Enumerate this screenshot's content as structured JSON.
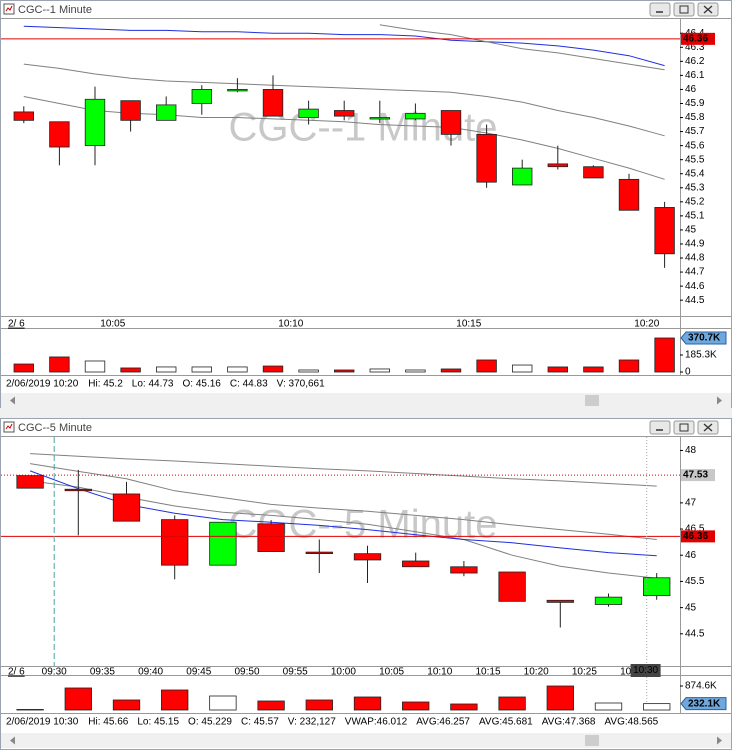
{
  "windows": [
    {
      "title": "CGC--1 Minute",
      "status": [
        "2/06/2019 10:20",
        "Hi: 45.2",
        "Lo: 44.73",
        "O: 45.16",
        "C: 44.83",
        "V: 370,661"
      ]
    },
    {
      "title": "CGC--5 Minute",
      "status": [
        "2/06/2019 10:30",
        "Hi: 45.66",
        "Lo: 45.15",
        "O: 45.229",
        "C: 45.57",
        "V: 232,127",
        "VWAP:46.012",
        "AVG:46.257",
        "AVG:45.681",
        "AVG:47.368",
        "AVG:48.565"
      ]
    }
  ],
  "chart_data": [
    {
      "type": "candlestick",
      "date_label": "2/ 6",
      "categories": [
        null,
        null,
        null,
        "10:05",
        null,
        null,
        null,
        null,
        "10:10",
        null,
        null,
        null,
        null,
        "10:15",
        null,
        null,
        null,
        null,
        "10:20"
      ],
      "open": [
        45.84,
        45.77,
        45.6,
        45.92,
        45.78,
        45.9,
        45.99,
        46.0,
        45.8,
        45.85,
        45.79,
        45.79,
        45.85,
        45.68,
        45.32,
        45.47,
        45.45,
        45.36,
        45.16
      ],
      "high": [
        45.88,
        45.77,
        46.02,
        45.92,
        45.95,
        46.03,
        46.08,
        46.1,
        45.92,
        45.92,
        45.92,
        45.9,
        45.85,
        45.75,
        45.5,
        45.6,
        45.46,
        45.4,
        45.2
      ],
      "low": [
        45.76,
        45.46,
        45.46,
        45.7,
        45.78,
        45.82,
        45.98,
        45.81,
        45.75,
        45.78,
        45.76,
        45.78,
        45.6,
        45.3,
        45.32,
        45.43,
        45.37,
        45.14,
        44.73
      ],
      "close": [
        45.78,
        45.59,
        45.93,
        45.78,
        45.89,
        46.0,
        46.0,
        45.81,
        45.86,
        45.81,
        45.8,
        45.83,
        45.68,
        45.34,
        45.44,
        45.45,
        45.37,
        45.14,
        44.83
      ],
      "up_color": "#00ff00",
      "down_color": "#ff0000",
      "overlays": [
        {
          "color": "#1f2fe0",
          "values": [
            46.45,
            46.44,
            46.43,
            46.42,
            46.42,
            46.41,
            46.41,
            46.4,
            46.4,
            46.39,
            46.39,
            46.38,
            46.35,
            46.34,
            46.33,
            46.31,
            46.28,
            46.24,
            46.17
          ]
        },
        {
          "color": "#808080",
          "values": [
            46.18,
            46.15,
            46.11,
            46.08,
            46.06,
            46.05,
            46.04,
            46.03,
            46.02,
            46.01,
            46.0,
            45.99,
            45.98,
            45.95,
            45.91,
            45.85,
            45.8,
            45.74,
            45.67
          ]
        },
        {
          "color": "#808080",
          "values": [
            45.95,
            45.9,
            45.85,
            45.83,
            45.82,
            45.8,
            45.8,
            45.79,
            45.78,
            45.77,
            45.75,
            45.74,
            45.73,
            45.69,
            45.64,
            45.58,
            45.51,
            45.44,
            45.36
          ]
        },
        {
          "color": "#808080",
          "values": [
            null,
            null,
            null,
            null,
            null,
            null,
            null,
            null,
            null,
            null,
            46.46,
            46.42,
            46.39,
            46.34,
            46.29,
            46.26,
            46.22,
            46.18,
            46.14
          ]
        }
      ],
      "ref_lines": [
        {
          "value": 46.36,
          "color": "#e00000",
          "style": "solid",
          "flag_color": "#e00000"
        }
      ],
      "ylim": [
        44.43,
        46.48
      ],
      "yticks": [
        46.4,
        46.3,
        46.2,
        46.1,
        46,
        45.9,
        45.8,
        45.7,
        45.6,
        45.5,
        45.4,
        45.3,
        45.2,
        45.1,
        45,
        44.9,
        44.8,
        44.7,
        44.6,
        44.5
      ],
      "volume": {
        "values": [
          87000,
          164000,
          120000,
          44000,
          55000,
          55000,
          55000,
          65000,
          22000,
          22000,
          33000,
          22000,
          33000,
          131000,
          76000,
          55000,
          55000,
          131000,
          370661
        ],
        "ylim": [
          0,
          425000
        ],
        "yticks": [
          {
            "value": 185330,
            "label": "185.3K"
          },
          0
        ],
        "flag": {
          "value": 370661,
          "label": "370.7K"
        },
        "flag_color": "#6fa8dc"
      }
    },
    {
      "type": "candlestick",
      "date_label": "2/ 6",
      "categories": [
        null,
        "09:30",
        "09:35",
        "09:40",
        "09:45",
        "09:50",
        "09:55",
        "10:00",
        "10:05",
        "10:10",
        "10:15",
        "10:20",
        "10:25",
        "10:30"
      ],
      "open": [
        47.52,
        47.26,
        47.17,
        46.68,
        45.81,
        46.6,
        46.06,
        46.03,
        45.89,
        45.78,
        45.68,
        45.14,
        45.06,
        45.229
      ],
      "high": [
        47.52,
        47.63,
        47.4,
        46.76,
        46.63,
        46.67,
        46.3,
        46.18,
        46.05,
        45.89,
        45.68,
        45.14,
        45.27,
        45.66
      ],
      "low": [
        47.28,
        46.38,
        46.65,
        45.54,
        45.81,
        46.07,
        45.66,
        45.47,
        45.78,
        45.6,
        45.12,
        44.62,
        45.02,
        45.15
      ],
      "close": [
        47.28,
        47.24,
        46.65,
        45.81,
        46.63,
        46.07,
        46.04,
        45.91,
        45.78,
        45.66,
        45.12,
        45.1,
        45.2,
        45.57
      ],
      "up_color": "#00ff00",
      "down_color": "#ff0000",
      "overlays": [
        {
          "color": "#808080",
          "values": [
            47.94,
            47.89,
            47.84,
            47.8,
            47.75,
            47.7,
            47.65,
            47.61,
            47.56,
            47.51,
            47.46,
            47.42,
            47.37,
            47.32
          ]
        },
        {
          "color": "#808080",
          "values": [
            47.75,
            47.6,
            47.46,
            47.23,
            47.1,
            46.97,
            46.9,
            46.84,
            46.76,
            46.68,
            46.58,
            46.49,
            46.4,
            46.3
          ]
        },
        {
          "color": "#808080",
          "values": [
            47.42,
            47.3,
            47.11,
            46.94,
            46.82,
            46.76,
            46.68,
            46.59,
            46.45,
            46.3,
            46.0,
            45.79,
            45.66,
            45.56
          ]
        },
        {
          "color": "#1f2fe0",
          "values": [
            47.61,
            47.27,
            46.97,
            46.8,
            46.68,
            46.63,
            46.57,
            46.49,
            46.39,
            46.3,
            46.24,
            46.14,
            46.05,
            45.99
          ]
        }
      ],
      "ref_lines": [
        {
          "value": 47.53,
          "color": "#e00000",
          "style": "dotted",
          "flag_color": "#c8c8c8"
        },
        {
          "value": 46.36,
          "color": "#e00000",
          "style": "solid",
          "flag_color": "#e00000"
        }
      ],
      "ylim": [
        44,
        48.2
      ],
      "yticks": [
        48,
        47,
        46.5,
        46,
        45.5,
        45,
        44.5
      ],
      "volume": {
        "values": [
          20000,
          802000,
          365000,
          729000,
          510000,
          328000,
          365000,
          474000,
          292000,
          219000,
          474000,
          874600,
          255000,
          232127
        ],
        "ylim": [
          0,
          1093000
        ],
        "yticks": [
          {
            "value": 874600,
            "label": "874.6K"
          }
        ],
        "flag": {
          "value": 232127,
          "label": "232.1K"
        },
        "flag_color": "#6fa8dc"
      }
    }
  ]
}
